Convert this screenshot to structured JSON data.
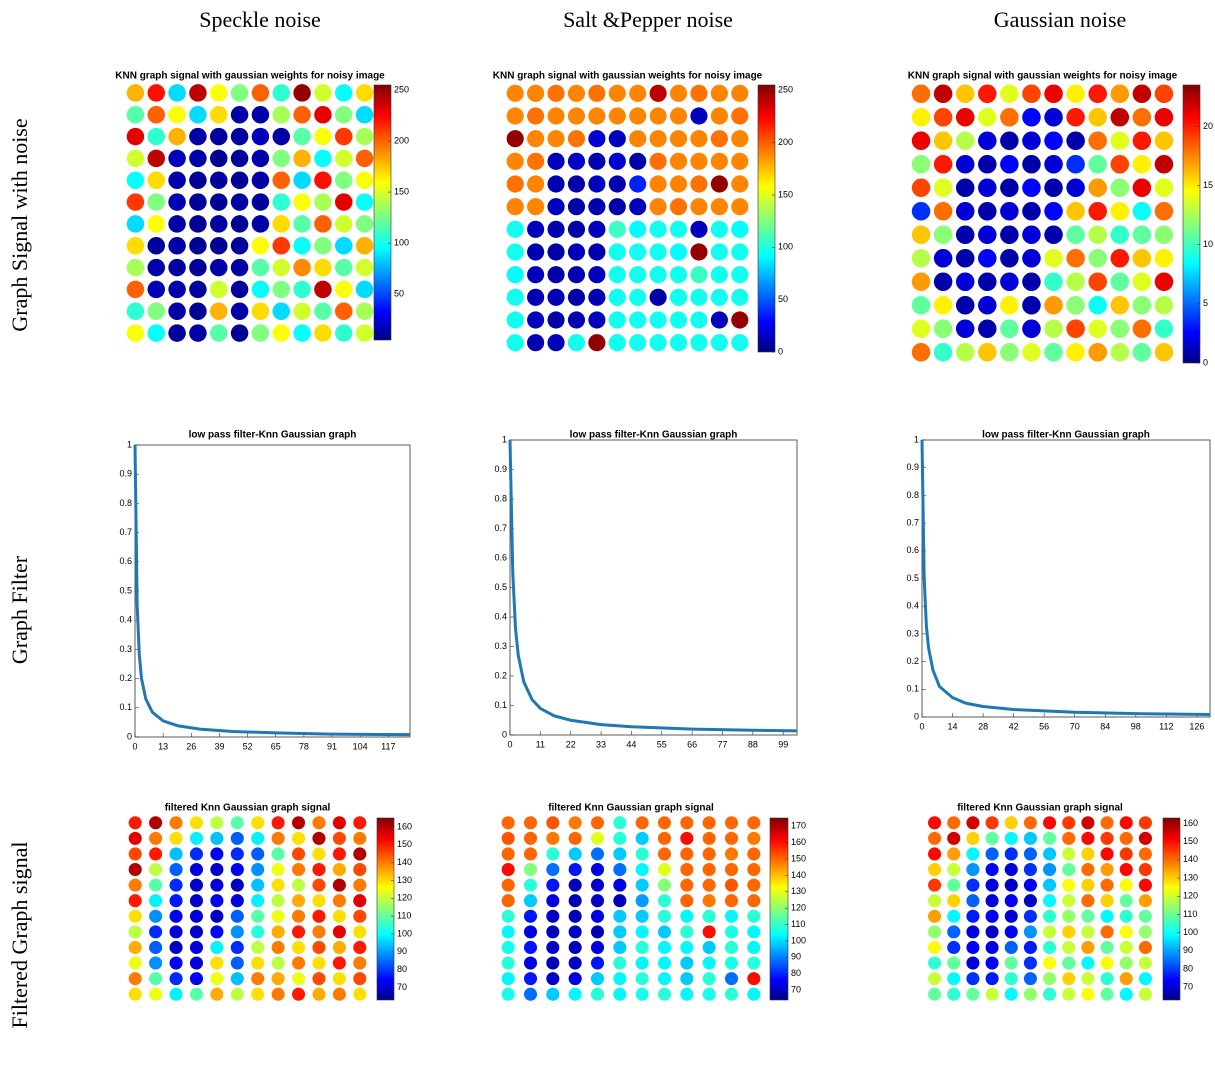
{
  "column_headers": [
    "Speckle noise",
    "Salt &Pepper noise",
    "Gaussian noise"
  ],
  "row_labels": [
    "Graph Signal with  noise",
    "Graph Filter",
    "Filtered Graph signal"
  ],
  "chart_data": [
    {
      "type": "heatmap",
      "title": "KNN graph signal with gaussian weights for noisy image",
      "colormap": "jet",
      "clim": [
        5,
        255
      ],
      "cticks": [
        50,
        100,
        150,
        200,
        250
      ],
      "values": [
        [
          180,
          220,
          90,
          240,
          160,
          130,
          200,
          110,
          250,
          150,
          100,
          170
        ],
        [
          120,
          200,
          160,
          90,
          170,
          15,
          15,
          140,
          200,
          230,
          130,
          90
        ],
        [
          230,
          110,
          180,
          15,
          12,
          14,
          20,
          15,
          120,
          160,
          210,
          140
        ],
        [
          150,
          240,
          20,
          15,
          10,
          12,
          15,
          130,
          180,
          100,
          150,
          200
        ],
        [
          100,
          170,
          15,
          10,
          12,
          10,
          14,
          200,
          90,
          220,
          130,
          160
        ],
        [
          210,
          130,
          18,
          12,
          10,
          14,
          12,
          110,
          160,
          140,
          230,
          100
        ],
        [
          90,
          160,
          15,
          10,
          12,
          10,
          15,
          170,
          120,
          200,
          150,
          130
        ],
        [
          170,
          12,
          14,
          10,
          10,
          12,
          160,
          210,
          100,
          130,
          90,
          180
        ],
        [
          140,
          15,
          12,
          10,
          15,
          14,
          120,
          150,
          190,
          170,
          120,
          150
        ],
        [
          200,
          18,
          15,
          12,
          150,
          12,
          100,
          130,
          110,
          240,
          160,
          90
        ],
        [
          110,
          130,
          14,
          10,
          180,
          15,
          170,
          90,
          150,
          120,
          200,
          140
        ],
        [
          160,
          100,
          12,
          14,
          120,
          10,
          130,
          160,
          100,
          170,
          110,
          150
        ]
      ]
    },
    {
      "type": "heatmap",
      "title": "KNN graph signal with gaussian weights for noisy image",
      "colormap": "jet",
      "clim": [
        0,
        255
      ],
      "cticks": [
        0,
        50,
        100,
        150,
        200,
        250
      ],
      "values": [
        [
          190,
          190,
          195,
          190,
          195,
          190,
          190,
          240,
          190,
          195,
          190,
          190
        ],
        [
          190,
          195,
          190,
          190,
          190,
          190,
          190,
          190,
          190,
          15,
          190,
          195
        ],
        [
          250,
          190,
          190,
          195,
          20,
          15,
          190,
          190,
          190,
          190,
          195,
          190
        ],
        [
          190,
          195,
          15,
          18,
          12,
          20,
          10,
          195,
          190,
          190,
          190,
          190
        ],
        [
          195,
          190,
          12,
          10,
          15,
          12,
          40,
          190,
          190,
          195,
          250,
          190
        ],
        [
          190,
          190,
          15,
          10,
          12,
          10,
          15,
          190,
          195,
          190,
          190,
          190
        ],
        [
          100,
          15,
          12,
          10,
          15,
          110,
          95,
          100,
          100,
          15,
          100,
          95
        ],
        [
          100,
          12,
          10,
          14,
          12,
          100,
          100,
          100,
          95,
          250,
          100,
          100
        ],
        [
          95,
          15,
          10,
          12,
          15,
          100,
          100,
          100,
          100,
          110,
          100,
          100
        ],
        [
          100,
          12,
          14,
          10,
          12,
          100,
          100,
          10,
          100,
          100,
          100,
          100
        ],
        [
          100,
          15,
          10,
          12,
          15,
          100,
          100,
          100,
          100,
          100,
          15,
          250
        ],
        [
          100,
          12,
          15,
          100,
          250,
          100,
          100,
          100,
          100,
          100,
          100,
          100
        ]
      ]
    },
    {
      "type": "heatmap",
      "title": "KNN graph signal with gaussian weights for noisy image",
      "colormap": "jet",
      "clim": [
        0,
        23.5
      ],
      "cticks": [
        0,
        5,
        10,
        15,
        20
      ],
      "values": [
        [
          18,
          22,
          16,
          20,
          14,
          19,
          21,
          15,
          20,
          17,
          22,
          19
        ],
        [
          15,
          19,
          21,
          14,
          18,
          3,
          2,
          20,
          16,
          22,
          18,
          21
        ],
        [
          21,
          16,
          13,
          2,
          1,
          2,
          3,
          1,
          18,
          14,
          20,
          16
        ],
        [
          12,
          20,
          2,
          1,
          3,
          1,
          2,
          4,
          11,
          19,
          15,
          22
        ],
        [
          19,
          14,
          1,
          2,
          1,
          3,
          1,
          2,
          17,
          12,
          21,
          14
        ],
        [
          4,
          18,
          2,
          1,
          2,
          1,
          3,
          16,
          20,
          15,
          9,
          18
        ],
        [
          16,
          12,
          1,
          2,
          1,
          2,
          1,
          11,
          13,
          10,
          11,
          12
        ],
        [
          13,
          2,
          1,
          3,
          1,
          2,
          14,
          18,
          12,
          20,
          16,
          15
        ],
        [
          17,
          1,
          2,
          1,
          2,
          1,
          10,
          13,
          19,
          11,
          14,
          21
        ],
        [
          11,
          15,
          1,
          2,
          15,
          1,
          17,
          12,
          9,
          16,
          12,
          13
        ],
        [
          14,
          12,
          2,
          1,
          11,
          2,
          13,
          19,
          14,
          12,
          18,
          10
        ],
        [
          18,
          10,
          13,
          16,
          12,
          14,
          11,
          15,
          17,
          13,
          11,
          16
        ]
      ]
    },
    {
      "type": "line",
      "title": "low pass filter-Knn Gaussian graph",
      "color": "#1f77b4",
      "xlim": [
        0,
        127
      ],
      "ylim": [
        0,
        1
      ],
      "xticks": [
        0,
        13,
        26,
        39,
        52,
        65,
        78,
        91,
        104,
        117
      ],
      "yticks": [
        0,
        0.1,
        0.2,
        0.3,
        0.4,
        0.5,
        0.6,
        0.7,
        0.8,
        0.9,
        1
      ],
      "x": [
        0,
        1,
        2,
        3,
        5,
        8,
        13,
        20,
        30,
        45,
        65,
        90,
        127
      ],
      "y": [
        1,
        0.45,
        0.28,
        0.2,
        0.13,
        0.085,
        0.055,
        0.038,
        0.027,
        0.019,
        0.014,
        0.01,
        0.008
      ]
    },
    {
      "type": "line",
      "title": "low pass filter-Knn Gaussian graph",
      "color": "#1f77b4",
      "xlim": [
        0,
        104
      ],
      "ylim": [
        0,
        1
      ],
      "xticks": [
        0,
        11,
        22,
        33,
        44,
        55,
        66,
        77,
        88,
        99
      ],
      "yticks": [
        0,
        0.1,
        0.2,
        0.3,
        0.4,
        0.5,
        0.6,
        0.7,
        0.8,
        0.9,
        1
      ],
      "x": [
        0,
        1,
        2,
        3,
        5,
        8,
        11,
        16,
        22,
        33,
        44,
        66,
        88,
        104
      ],
      "y": [
        1,
        0.55,
        0.36,
        0.27,
        0.18,
        0.12,
        0.09,
        0.065,
        0.05,
        0.035,
        0.028,
        0.02,
        0.016,
        0.014
      ]
    },
    {
      "type": "line",
      "title": "low pass filter-Knn Gaussian graph",
      "color": "#1f77b4",
      "xlim": [
        0,
        132
      ],
      "ylim": [
        0,
        1
      ],
      "xticks": [
        0,
        14,
        28,
        42,
        56,
        70,
        84,
        98,
        112,
        126
      ],
      "yticks": [
        0,
        0.1,
        0.2,
        0.3,
        0.4,
        0.5,
        0.6,
        0.7,
        0.8,
        0.9,
        1
      ],
      "x": [
        0,
        1,
        2,
        3,
        5,
        8,
        14,
        20,
        28,
        42,
        70,
        98,
        132
      ],
      "y": [
        1,
        0.5,
        0.33,
        0.25,
        0.17,
        0.11,
        0.07,
        0.05,
        0.038,
        0.027,
        0.017,
        0.012,
        0.009
      ]
    },
    {
      "type": "heatmap",
      "title": "filtered Knn Gaussian graph signal",
      "colormap": "jet",
      "clim": [
        63,
        165
      ],
      "cticks": [
        70,
        80,
        90,
        100,
        110,
        120,
        130,
        140,
        150,
        160
      ],
      "values": [
        [
          150,
          160,
          140,
          130,
          120,
          110,
          130,
          150,
          160,
          140,
          155,
          150
        ],
        [
          155,
          140,
          130,
          100,
          95,
          85,
          100,
          140,
          130,
          160,
          145,
          140
        ],
        [
          145,
          150,
          95,
          80,
          75,
          80,
          85,
          110,
          145,
          130,
          150,
          160
        ],
        [
          160,
          120,
          85,
          72,
          70,
          75,
          90,
          125,
          140,
          150,
          135,
          145
        ],
        [
          140,
          110,
          80,
          70,
          72,
          70,
          95,
          130,
          120,
          145,
          160,
          140
        ],
        [
          150,
          100,
          78,
          70,
          75,
          72,
          100,
          120,
          135,
          130,
          140,
          155
        ],
        [
          130,
          90,
          75,
          72,
          70,
          85,
          110,
          125,
          140,
          150,
          130,
          145
        ],
        [
          120,
          80,
          72,
          70,
          75,
          90,
          105,
          135,
          150,
          140,
          155,
          130
        ],
        [
          135,
          85,
          70,
          72,
          100,
          80,
          120,
          140,
          130,
          145,
          135,
          150
        ],
        [
          125,
          90,
          75,
          72,
          130,
          85,
          130,
          120,
          140,
          130,
          150,
          140
        ],
        [
          140,
          110,
          80,
          75,
          125,
          95,
          140,
          135,
          125,
          145,
          130,
          145
        ],
        [
          130,
          125,
          100,
          110,
          135,
          120,
          130,
          140,
          150,
          135,
          140,
          130
        ]
      ]
    },
    {
      "type": "heatmap",
      "title": "filtered Knn Gaussian graph signal",
      "colormap": "jet",
      "clim": [
        64,
        175
      ],
      "cticks": [
        70,
        80,
        90,
        100,
        110,
        120,
        130,
        140,
        150,
        160,
        170
      ],
      "values": [
        [
          150,
          150,
          152,
          148,
          150,
          110,
          150,
          150,
          150,
          150,
          150,
          150
        ],
        [
          152,
          150,
          148,
          150,
          130,
          110,
          100,
          150,
          160,
          150,
          150,
          148
        ],
        [
          150,
          150,
          110,
          100,
          90,
          100,
          110,
          150,
          150,
          150,
          148,
          150
        ],
        [
          160,
          120,
          90,
          80,
          75,
          90,
          105,
          130,
          150,
          150,
          150,
          150
        ],
        [
          150,
          110,
          80,
          70,
          72,
          75,
          100,
          120,
          150,
          150,
          152,
          150
        ],
        [
          150,
          100,
          75,
          70,
          72,
          70,
          95,
          110,
          150,
          148,
          150,
          150
        ],
        [
          110,
          80,
          72,
          70,
          75,
          100,
          100,
          110,
          105,
          110,
          105,
          110
        ],
        [
          105,
          75,
          70,
          72,
          70,
          100,
          105,
          100,
          110,
          160,
          108,
          105
        ],
        [
          108,
          80,
          72,
          70,
          75,
          100,
          110,
          105,
          105,
          100,
          110,
          105
        ],
        [
          110,
          75,
          70,
          72,
          80,
          110,
          105,
          105,
          100,
          105,
          108,
          110
        ],
        [
          105,
          80,
          72,
          75,
          100,
          105,
          110,
          105,
          100,
          110,
          90,
          160
        ],
        [
          108,
          90,
          100,
          105,
          110,
          105,
          108,
          110,
          105,
          108,
          110,
          105
        ]
      ]
    },
    {
      "type": "heatmap",
      "title": "filtered Knn Gaussian graph signal",
      "colormap": "jet",
      "clim": [
        63,
        163
      ],
      "cticks": [
        70,
        80,
        90,
        100,
        110,
        120,
        130,
        140,
        150,
        160
      ],
      "values": [
        [
          150,
          140,
          155,
          145,
          130,
          140,
          150,
          145,
          155,
          140,
          150,
          145
        ],
        [
          140,
          155,
          130,
          110,
          100,
          95,
          110,
          140,
          150,
          145,
          140,
          155
        ],
        [
          150,
          135,
          100,
          85,
          80,
          85,
          95,
          120,
          130,
          150,
          145,
          140
        ],
        [
          130,
          120,
          90,
          75,
          72,
          80,
          90,
          110,
          140,
          135,
          150,
          145
        ],
        [
          145,
          110,
          80,
          72,
          70,
          75,
          95,
          125,
          130,
          140,
          125,
          150
        ],
        [
          120,
          130,
          85,
          72,
          75,
          70,
          100,
          120,
          140,
          130,
          110,
          135
        ],
        [
          135,
          100,
          78,
          75,
          72,
          80,
          105,
          115,
          110,
          100,
          105,
          110
        ],
        [
          115,
          85,
          72,
          70,
          75,
          90,
          120,
          130,
          120,
          140,
          125,
          115
        ],
        [
          125,
          80,
          75,
          72,
          85,
          78,
          105,
          120,
          135,
          110,
          120,
          140
        ],
        [
          105,
          110,
          72,
          75,
          110,
          80,
          125,
          110,
          100,
          125,
          115,
          120
        ],
        [
          120,
          100,
          80,
          78,
          105,
          85,
          115,
          130,
          120,
          105,
          135,
          100
        ],
        [
          110,
          105,
          110,
          120,
          100,
          115,
          105,
          120,
          125,
          110,
          100,
          120
        ]
      ]
    }
  ]
}
